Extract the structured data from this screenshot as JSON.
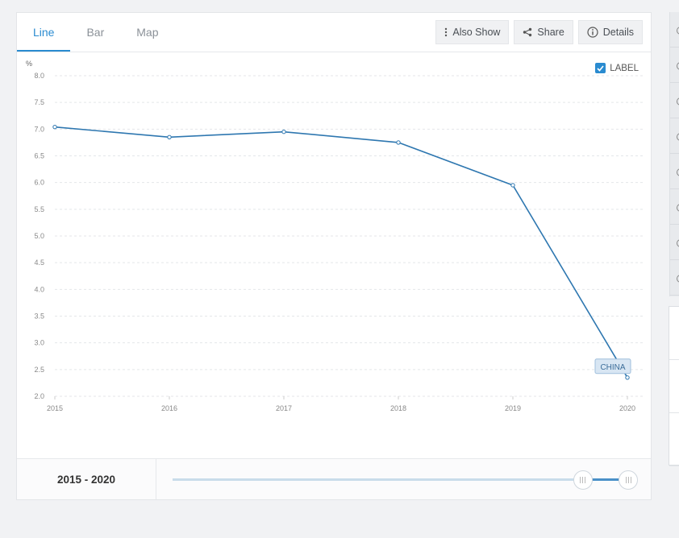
{
  "tabs": [
    {
      "label": "Line",
      "active": true
    },
    {
      "label": "Bar",
      "active": false
    },
    {
      "label": "Map",
      "active": false
    }
  ],
  "toolbar": {
    "also_show": "Also Show",
    "share": "Share",
    "details": "Details"
  },
  "label_toggle": {
    "label": "LABEL",
    "checked": true
  },
  "colors": {
    "accent": "#2a8bd0",
    "line": "#2e77b0",
    "label_bg": "#d8e6f3"
  },
  "chart_data": {
    "type": "line",
    "unit": "%",
    "x": [
      2015,
      2016,
      2017,
      2018,
      2019,
      2020
    ],
    "series": [
      {
        "name": "CHINA",
        "values": [
          7.04,
          6.85,
          6.95,
          6.75,
          5.95,
          2.35
        ]
      }
    ],
    "ylim": [
      2.0,
      8.0
    ],
    "yticks": [
      "2.0",
      "2.5",
      "3.0",
      "3.5",
      "4.0",
      "4.5",
      "5.0",
      "5.5",
      "6.0",
      "6.5",
      "7.0",
      "7.5",
      "8.0"
    ],
    "xticks": [
      "2015",
      "2016",
      "2017",
      "2018",
      "2019",
      "2020"
    ],
    "grid": true
  },
  "footer": {
    "range_label": "2015 - 2020",
    "range_start": 2015,
    "range_end": 2020,
    "selected_fraction_start": 0.9,
    "selected_fraction_end": 1.0
  },
  "icons": {
    "also_show": "vertical-dots-icon",
    "share": "share-icon",
    "details": "info-icon",
    "label_checkbox": "checkmark-icon"
  }
}
